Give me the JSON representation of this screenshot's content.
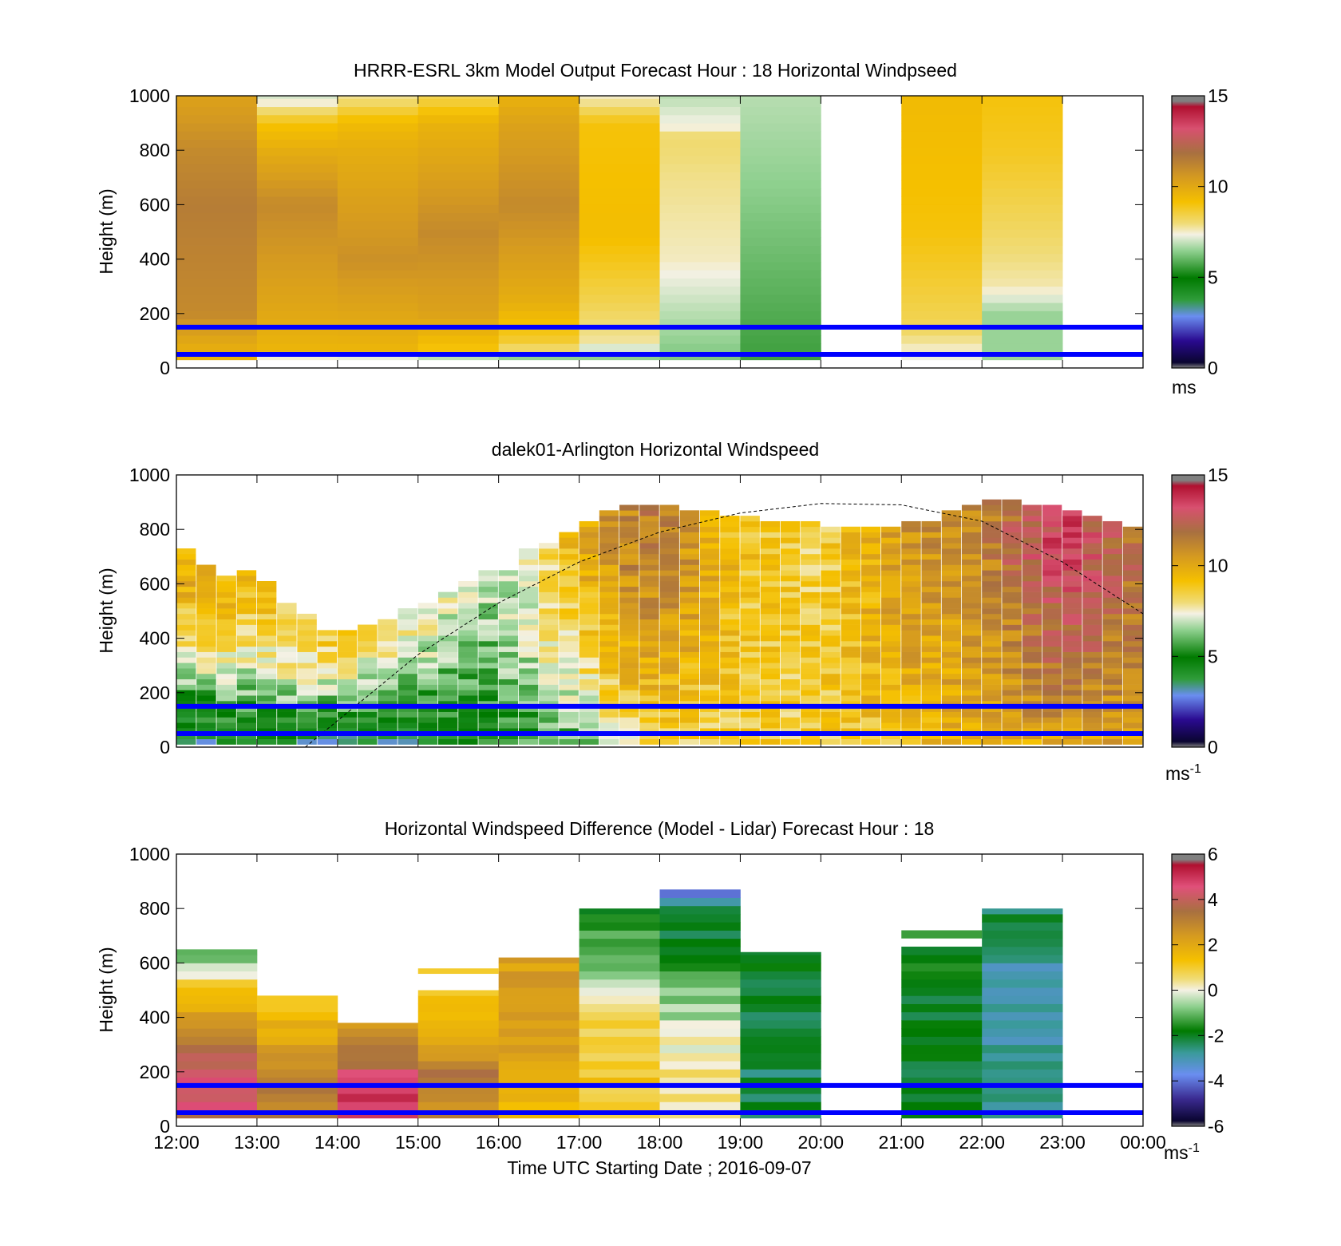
{
  "figure": {
    "xlabel": "Time UTC  Starting Date ; 2016-09-07",
    "x_tick_labels": [
      "12:00",
      "13:00",
      "14:00",
      "15:00",
      "16:00",
      "17:00",
      "18:00",
      "19:00",
      "20:00",
      "21:00",
      "22:00",
      "23:00",
      "00:00"
    ],
    "y_tick_labels": [
      "0",
      "200",
      "400",
      "600",
      "800",
      "1000"
    ],
    "blue_line_color": "#0000ff",
    "blue_line_heights_m": [
      50,
      150
    ]
  },
  "chart_data": [
    {
      "type": "heatmap",
      "title": "HRRR-ESRL 3km Model Output   Forecast Hour : 18 Horizontal Windpseed",
      "ylabel": "Height (m)",
      "xlim_hours": [
        12,
        24
      ],
      "ylim": [
        0,
        1000
      ],
      "colorbar": {
        "ticks": [
          "0",
          "5",
          "10",
          "15"
        ],
        "range": [
          0,
          15
        ],
        "unit_text": "ms",
        "unit_exp": ""
      },
      "hourly_profiles": [
        {
          "hour": 12,
          "top": 1000,
          "bottom": 30,
          "profile": [
            [
              30,
              9.5
            ],
            [
              100,
              10.0
            ],
            [
              200,
              11.0
            ],
            [
              400,
              11.2
            ],
            [
              600,
              11.4
            ],
            [
              800,
              11.0
            ],
            [
              1000,
              10.2
            ]
          ]
        },
        {
          "hour": 13,
          "top": 1000,
          "bottom": 30,
          "profile": [
            [
              30,
              5.5
            ],
            [
              60,
              9.5
            ],
            [
              200,
              10.0
            ],
            [
              600,
              11.0
            ],
            [
              800,
              9.8
            ],
            [
              900,
              9.0
            ],
            [
              1000,
              7.0
            ]
          ]
        },
        {
          "hour": 14,
          "top": 1000,
          "bottom": 30,
          "profile": [
            [
              30,
              5.0
            ],
            [
              60,
              9.5
            ],
            [
              400,
              10.8
            ],
            [
              800,
              9.8
            ],
            [
              900,
              9.3
            ],
            [
              1000,
              7.8
            ]
          ]
        },
        {
          "hour": 15,
          "top": 1000,
          "bottom": 30,
          "profile": [
            [
              30,
              5.5
            ],
            [
              70,
              9.0
            ],
            [
              200,
              10.2
            ],
            [
              500,
              11.0
            ],
            [
              900,
              9.6
            ],
            [
              1000,
              8.3
            ]
          ]
        },
        {
          "hour": 16,
          "top": 1000,
          "bottom": 30,
          "profile": [
            [
              30,
              5.5
            ],
            [
              80,
              8.5
            ],
            [
              250,
              9.8
            ],
            [
              600,
              11.0
            ],
            [
              900,
              10.2
            ],
            [
              1000,
              9.6
            ]
          ]
        },
        {
          "hour": 17,
          "top": 1000,
          "bottom": 30,
          "profile": [
            [
              30,
              6.0
            ],
            [
              100,
              7.8
            ],
            [
              250,
              8.4
            ],
            [
              500,
              9.2
            ],
            [
              900,
              9.0
            ],
            [
              1000,
              7.5
            ]
          ]
        },
        {
          "hour": 18,
          "top": 1000,
          "bottom": 30,
          "profile": [
            [
              30,
              6.2
            ],
            [
              200,
              6.8
            ],
            [
              400,
              7.6
            ],
            [
              700,
              7.9
            ],
            [
              850,
              8.1
            ],
            [
              880,
              7.5
            ],
            [
              1000,
              6.8
            ]
          ]
        },
        {
          "hour": 19,
          "top": 1000,
          "bottom": 30,
          "profile": [
            [
              30,
              5.6
            ],
            [
              200,
              5.8
            ],
            [
              600,
              6.3
            ],
            [
              1000,
              6.8
            ]
          ]
        },
        {
          "hour": 21,
          "top": 1000,
          "bottom": 30,
          "profile": [
            [
              30,
              7.2
            ],
            [
              150,
              8.3
            ],
            [
              300,
              8.6
            ],
            [
              500,
              9.0
            ],
            [
              1000,
              9.3
            ]
          ]
        },
        {
          "hour": 22,
          "top": 1000,
          "bottom": 30,
          "profile": [
            [
              30,
              6.5
            ],
            [
              200,
              6.5
            ],
            [
              300,
              7.7
            ],
            [
              500,
              8.2
            ],
            [
              800,
              8.8
            ],
            [
              1000,
              9.0
            ]
          ]
        }
      ]
    },
    {
      "type": "heatmap",
      "title": "dalek01-Arlington  Horizontal Windspeed",
      "ylabel": "Height (m)",
      "xlim_hours": [
        12,
        24
      ],
      "ylim": [
        0,
        1000
      ],
      "colorbar": {
        "ticks": [
          "0",
          "5",
          "10",
          "15"
        ],
        "range": [
          0,
          15
        ],
        "unit_text": "ms",
        "unit_exp": "-1"
      },
      "column_width_hours": 0.25,
      "column_tops_m": [
        730,
        660,
        630,
        650,
        600,
        520,
        480,
        430,
        420,
        450,
        470,
        500,
        530,
        570,
        600,
        640,
        650,
        720,
        750,
        790,
        830,
        860,
        880,
        890,
        880,
        870,
        860,
        850,
        840,
        830,
        820,
        815,
        810,
        810,
        810,
        810,
        820,
        830,
        860,
        880,
        900,
        900,
        890,
        880,
        860,
        840,
        820,
        800
      ],
      "speed_key_times_h": [
        12,
        13,
        14.5,
        15.5,
        16,
        17,
        17.5,
        18,
        19,
        20,
        21,
        22,
        23,
        24
      ],
      "surface_speed_by_time": [
        2.5,
        3.5,
        3.0,
        4.0,
        5.0,
        5.6,
        7.5,
        8.2,
        8.5,
        8.7,
        9.0,
        9.5,
        10.0,
        10.0
      ],
      "upper_speed_by_time": [
        9.8,
        9.0,
        8.0,
        7.0,
        6.5,
        9.5,
        11.0,
        11.5,
        9.0,
        8.5,
        10.5,
        11.0,
        13.5,
        11.5
      ],
      "black_dashed_curve_note": "solar elevation style arc",
      "curve_points": [
        [
          13.6,
          0
        ],
        [
          15,
          340
        ],
        [
          16,
          530
        ],
        [
          17,
          680
        ],
        [
          18,
          790
        ],
        [
          19,
          860
        ],
        [
          20,
          895
        ],
        [
          21,
          890
        ],
        [
          22,
          830
        ],
        [
          23,
          680
        ],
        [
          24,
          490
        ]
      ]
    },
    {
      "type": "heatmap",
      "title": "Horizontal Windspeed Difference (Model - Lidar) Forecast Hour : 18",
      "ylabel": "Height (m)",
      "xlim_hours": [
        12,
        24
      ],
      "ylim": [
        0,
        1000
      ],
      "colorbar": {
        "ticks": [
          "-6",
          "-4",
          "-2",
          "0",
          "2",
          "4",
          "6"
        ],
        "range": [
          -6,
          6
        ],
        "unit_text": "ms",
        "unit_exp": "-1"
      },
      "hourly_profiles": [
        {
          "hour": 12,
          "top": 650,
          "bottom": 30,
          "profile": [
            [
              30,
              4.0
            ],
            [
              150,
              4.5
            ],
            [
              250,
              3.8
            ],
            [
              350,
              2.6
            ],
            [
              450,
              1.8
            ],
            [
              550,
              0.5
            ],
            [
              600,
              -0.8
            ],
            [
              650,
              -1.8
            ]
          ]
        },
        {
          "hour": 13,
          "top": 480,
          "bottom": 30,
          "profile": [
            [
              30,
              3.2
            ],
            [
              150,
              3.0
            ],
            [
              300,
              2.0
            ],
            [
              480,
              1.2
            ]
          ]
        },
        {
          "hour": 14,
          "top": 380,
          "bottom": 30,
          "profile": [
            [
              30,
              5.0
            ],
            [
              150,
              4.6
            ],
            [
              250,
              3.6
            ],
            [
              380,
              2.5
            ]
          ]
        },
        {
          "hour": 15,
          "top": 500,
          "bottom": 30,
          "profile": [
            [
              30,
              2.8
            ],
            [
              200,
              3.2
            ],
            [
              350,
              1.8
            ],
            [
              500,
              1.2
            ]
          ]
        },
        {
          "hour": 16,
          "top": 620,
          "bottom": 30,
          "profile": [
            [
              30,
              1.2
            ],
            [
              200,
              1.8
            ],
            [
              400,
              2.4
            ],
            [
              620,
              2.2
            ]
          ]
        },
        {
          "hour": 17,
          "top": 800,
          "bottom": 30,
          "profile": [
            [
              30,
              1.2
            ],
            [
              350,
              0.9
            ],
            [
              500,
              -0.5
            ],
            [
              700,
              -1.2
            ],
            [
              800,
              -2.3
            ]
          ]
        },
        {
          "hour": 18,
          "top": 870,
          "bottom": 30,
          "profile": [
            [
              30,
              0.3
            ],
            [
              250,
              0.4
            ],
            [
              450,
              -0.8
            ],
            [
              650,
              -2.0
            ],
            [
              800,
              -2.6
            ],
            [
              870,
              -4.2
            ]
          ]
        },
        {
          "hour": 19,
          "top": 640,
          "bottom": 30,
          "profile": [
            [
              30,
              -2.4
            ],
            [
              300,
              -2.6
            ],
            [
              640,
              -2.2
            ]
          ]
        },
        {
          "hour": 21,
          "top": 660,
          "bottom": 30,
          "profile": [
            [
              30,
              -2.2
            ],
            [
              300,
              -2.4
            ],
            [
              660,
              -2.0
            ]
          ]
        },
        {
          "hour": 22,
          "top": 800,
          "bottom": 30,
          "profile": [
            [
              30,
              -2.8
            ],
            [
              300,
              -3.0
            ],
            [
              550,
              -3.2
            ],
            [
              800,
              -2.5
            ]
          ]
        }
      ],
      "extra_segments": [
        {
          "hour": 15,
          "from": 560,
          "to": 580,
          "value": 1.0
        },
        {
          "hour": 21,
          "from": 690,
          "to": 720,
          "value": -1.5
        }
      ]
    }
  ]
}
